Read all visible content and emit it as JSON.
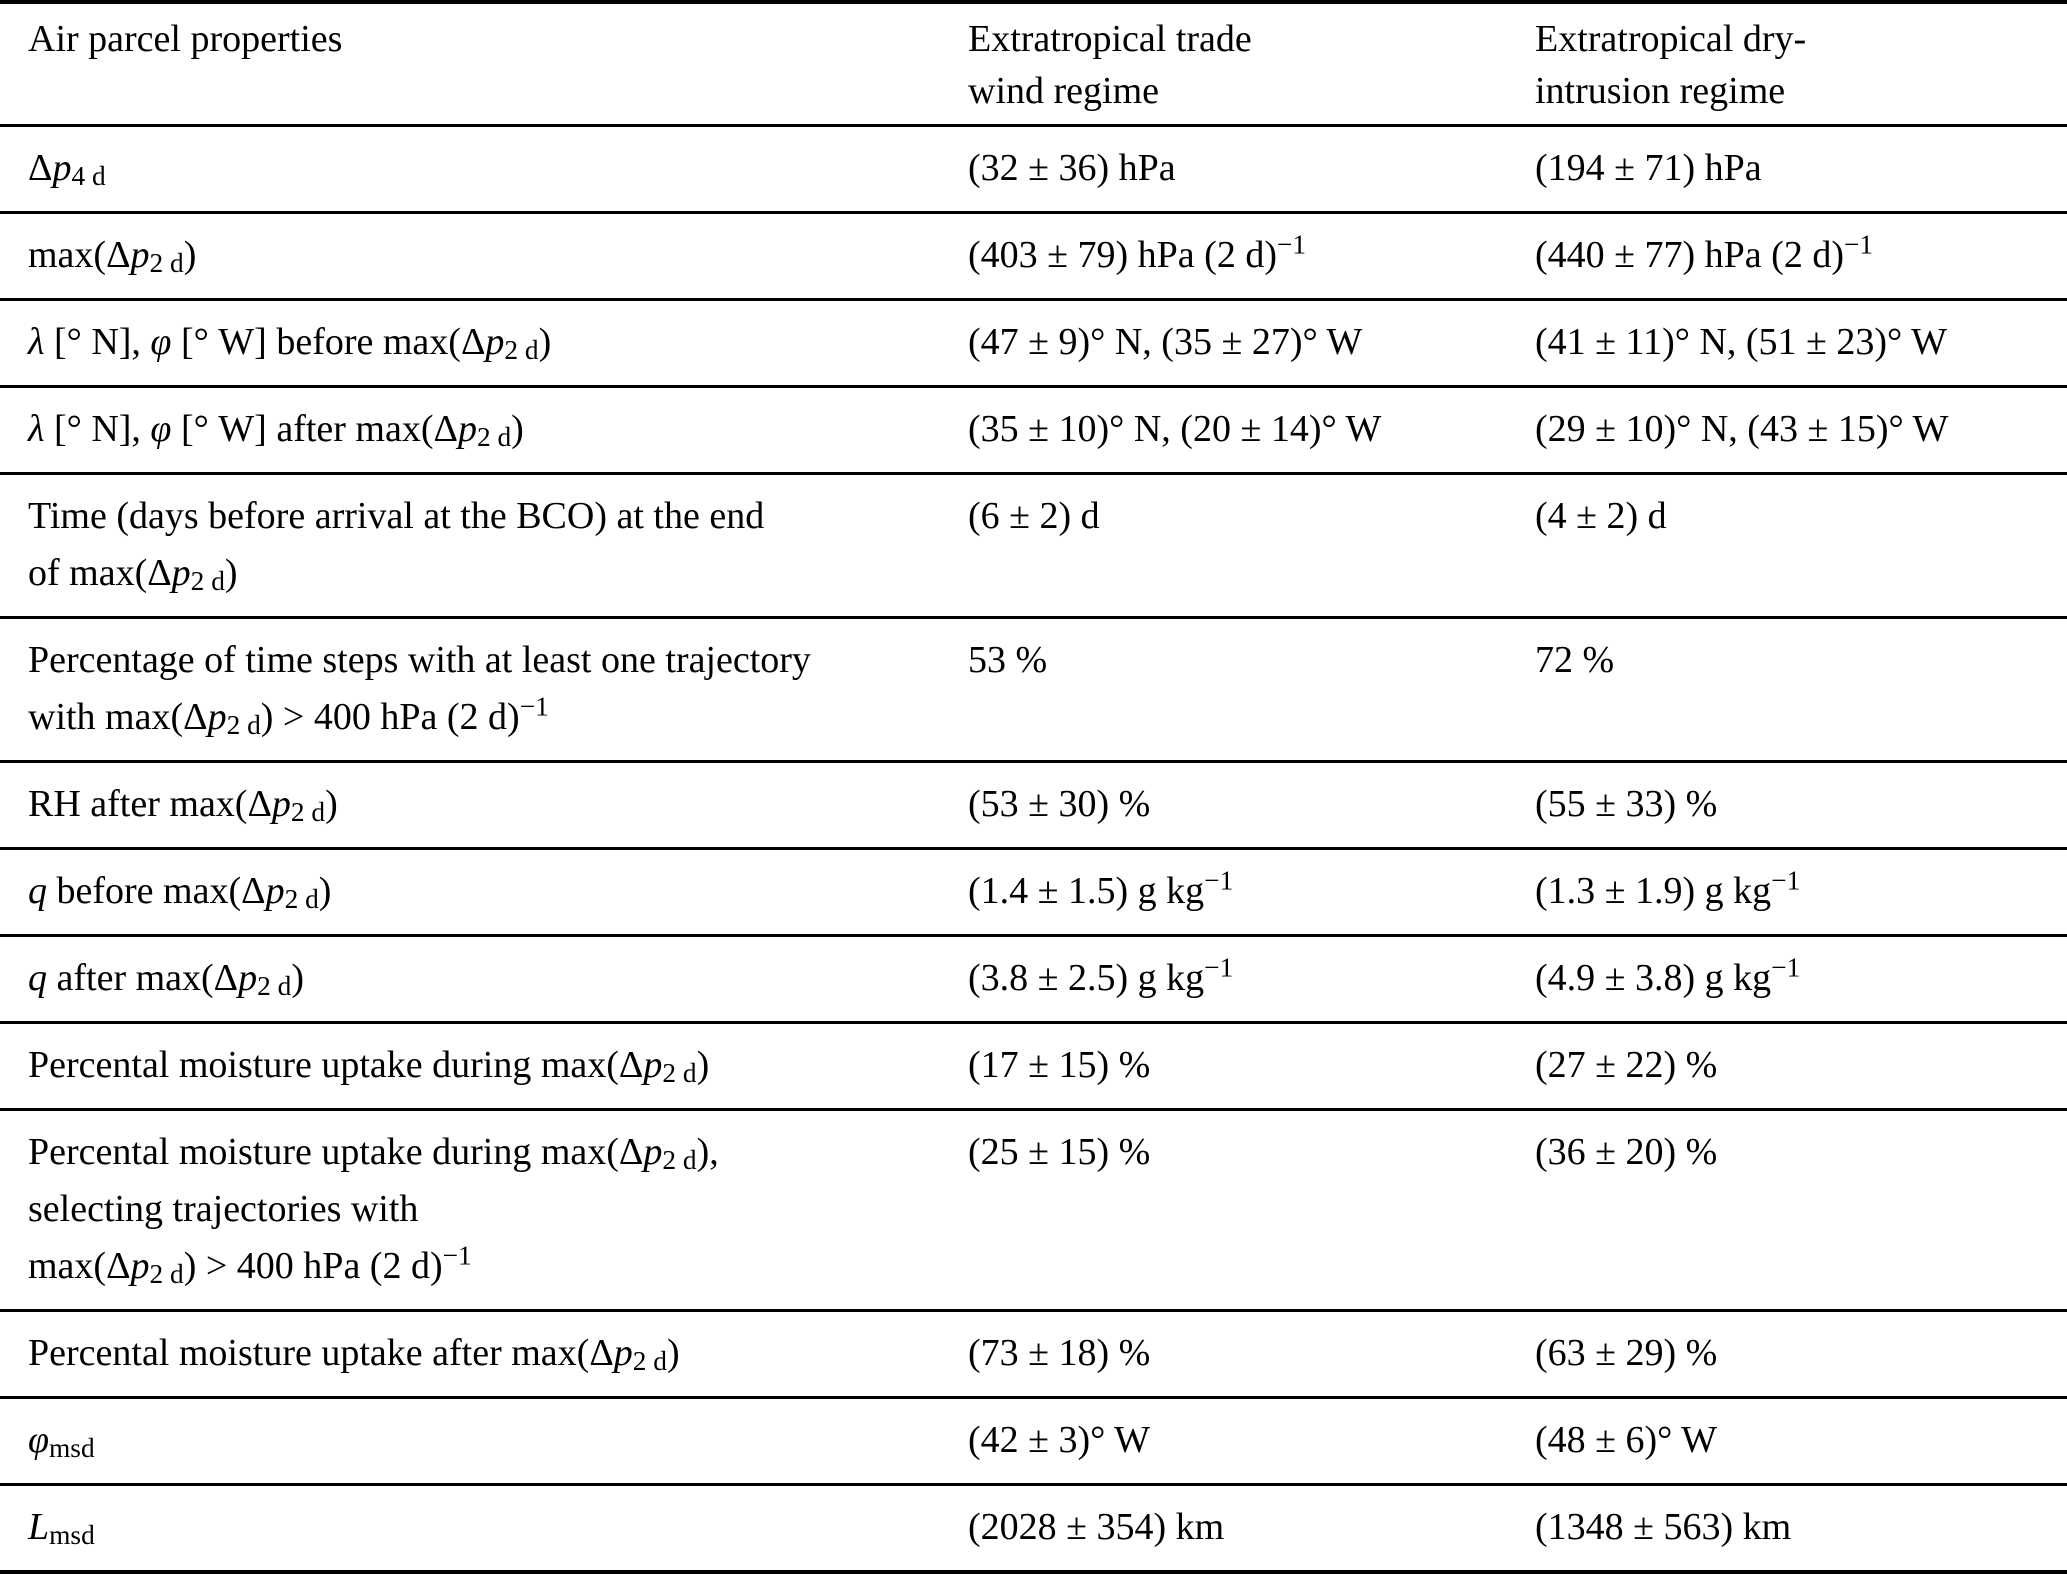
{
  "table": {
    "columns": [
      {
        "label": "Air parcel properties"
      },
      {
        "label": "Extratropical trade\nwind regime"
      },
      {
        "label": "Extratropical dry-\nintrusion regime"
      }
    ],
    "rows": [
      {
        "property": "Δ*{p}_{4 d}",
        "trade_wind_regime": "(32 ± 36) hPa",
        "dry_intrusion_regime": "(194 ± 71) hPa"
      },
      {
        "property": "max(Δ*{p}_{2 d})",
        "trade_wind_regime": "(403 ± 79) hPa (2 d)^{−1}",
        "dry_intrusion_regime": "(440 ± 77) hPa (2 d)^{−1}"
      },
      {
        "property": "*{λ} [° N], *{φ} [° W] before max(Δ*{p}_{2 d})",
        "trade_wind_regime": "(47 ± 9)° N, (35 ± 27)° W",
        "dry_intrusion_regime": "(41 ± 11)° N, (51 ± 23)° W"
      },
      {
        "property": "*{λ} [° N], *{φ} [° W] after max(Δ*{p}_{2 d})",
        "trade_wind_regime": "(35 ± 10)° N, (20 ± 14)° W",
        "dry_intrusion_regime": "(29 ± 10)° N, (43 ± 15)° W"
      },
      {
        "property": "Time (days before arrival at the BCO) at the end\nof max(Δ*{p}_{2 d})",
        "trade_wind_regime": "(6 ± 2) d",
        "dry_intrusion_regime": "(4 ± 2) d"
      },
      {
        "property": "Percentage of time steps with at least one trajectory\nwith max(Δ*{p}_{2 d}) > 400 hPa (2 d)^{−1}",
        "trade_wind_regime": "53 %",
        "dry_intrusion_regime": "72 %"
      },
      {
        "property": "RH after max(Δ*{p}_{2 d})",
        "trade_wind_regime": "(53 ± 30) %",
        "dry_intrusion_regime": "(55 ± 33) %"
      },
      {
        "property": "*{q} before max(Δ*{p}_{2 d})",
        "trade_wind_regime": "(1.4 ± 1.5) g kg^{−1}",
        "dry_intrusion_regime": "(1.3 ± 1.9) g kg^{−1}"
      },
      {
        "property": "*{q} after max(Δ*{p}_{2 d})",
        "trade_wind_regime": "(3.8 ± 2.5) g kg^{−1}",
        "dry_intrusion_regime": "(4.9 ± 3.8) g kg^{−1}"
      },
      {
        "property": "Percental moisture uptake during max(Δ*{p}_{2 d})",
        "trade_wind_regime": "(17 ± 15) %",
        "dry_intrusion_regime": "(27 ± 22) %"
      },
      {
        "property": "Percental moisture uptake during max(Δ*{p}_{2 d}),\nselecting trajectories with\nmax(Δ*{p}_{2 d}) > 400 hPa (2 d)^{−1}",
        "trade_wind_regime": "(25 ± 15) %",
        "dry_intrusion_regime": "(36 ± 20) %"
      },
      {
        "property": "Percental moisture uptake after max(Δ*{p}_{2 d})",
        "trade_wind_regime": "(73 ± 18) %",
        "dry_intrusion_regime": "(63 ± 29) %"
      },
      {
        "property": "*{φ}_{msd}",
        "trade_wind_regime": "(42 ± 3)° W",
        "dry_intrusion_regime": "(48 ± 6)° W"
      },
      {
        "property": "*{L}_{msd}",
        "trade_wind_regime": "(2028 ± 354) km",
        "dry_intrusion_regime": "(1348 ± 563) km"
      }
    ]
  }
}
